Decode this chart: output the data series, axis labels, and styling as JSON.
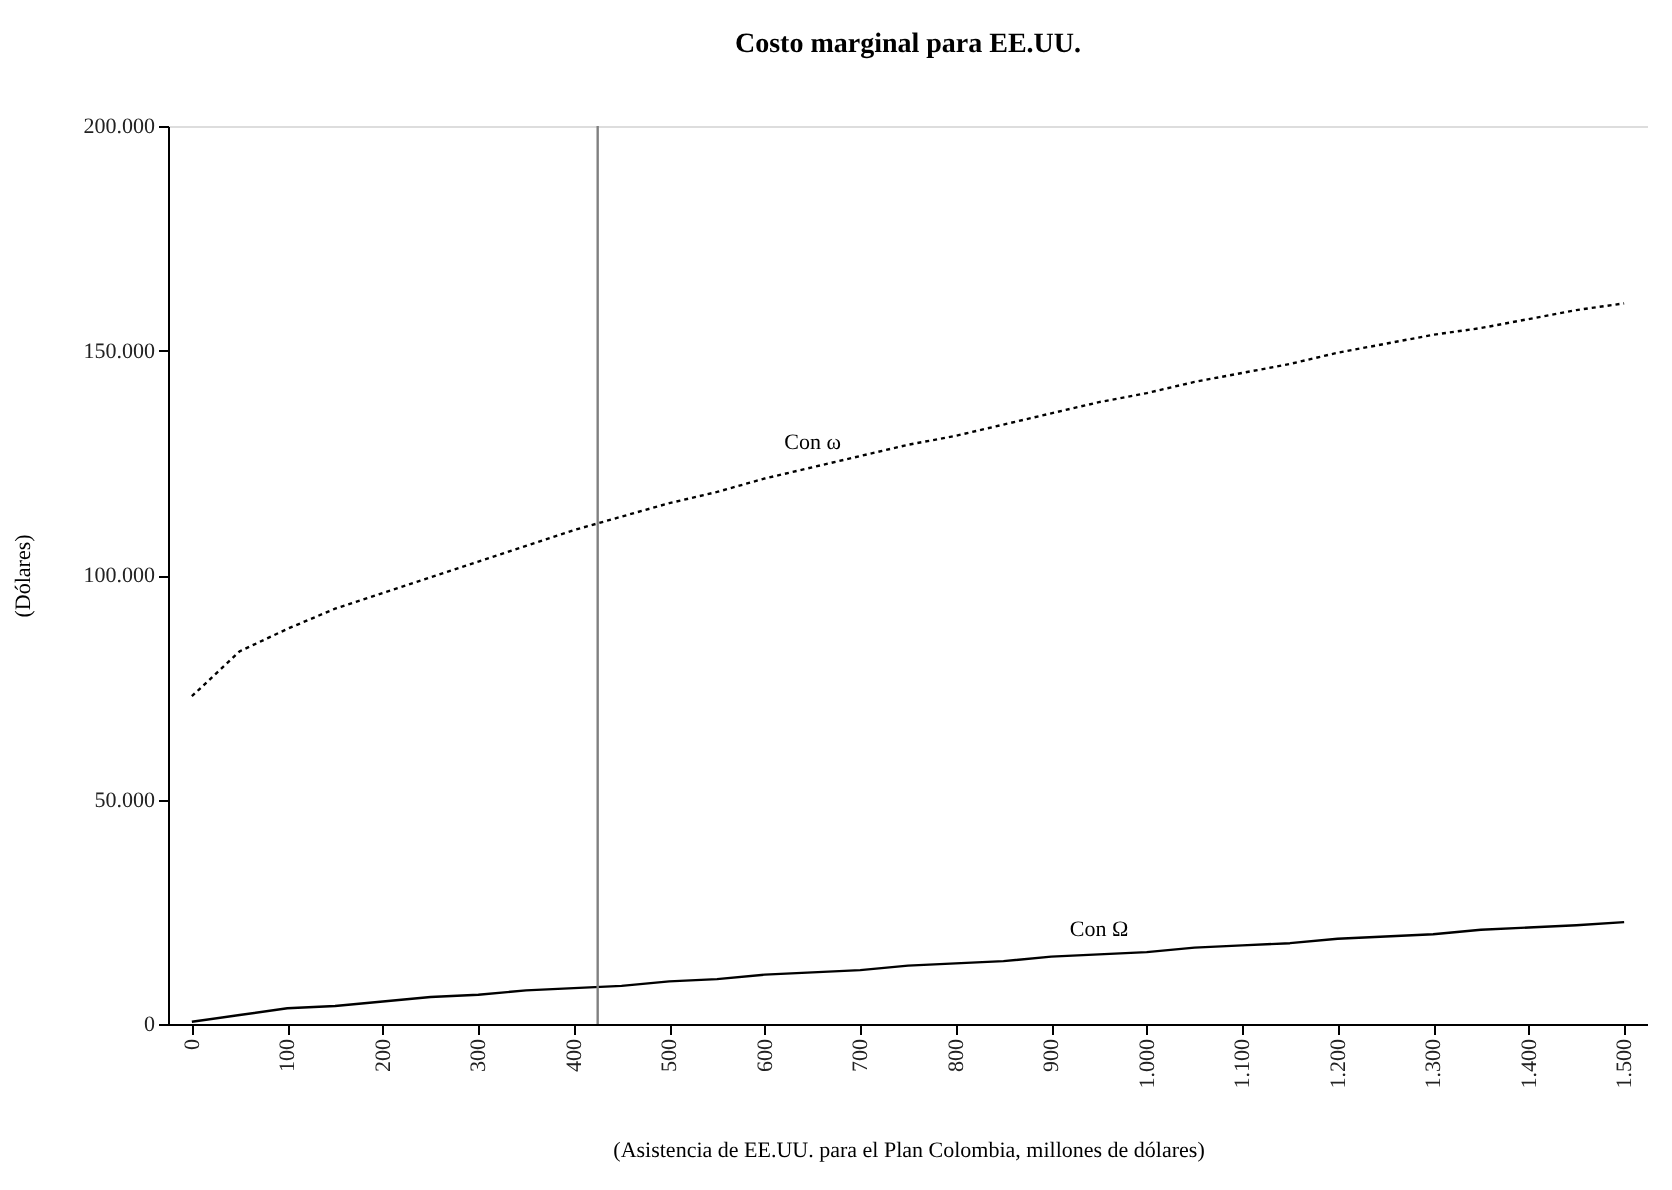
{
  "chart_data": {
    "type": "line",
    "title": "Costo marginal para EE.UU.",
    "xlabel": "(Asistencia de EE.UU. para el Plan Colombia, millones de dólares)",
    "ylabel": "(Dólares)",
    "x": [
      0,
      50,
      100,
      150,
      200,
      250,
      300,
      350,
      400,
      450,
      500,
      550,
      600,
      650,
      700,
      750,
      800,
      850,
      900,
      950,
      1000,
      1050,
      1100,
      1150,
      1200,
      1250,
      1300,
      1350,
      1400,
      1450,
      1500
    ],
    "series": [
      {
        "name": "Con ω",
        "color": "#000000",
        "line_style": "dotted",
        "values": [
          73000,
          83000,
          88000,
          92500,
          96000,
          99500,
          103000,
          106500,
          110000,
          113000,
          116000,
          118500,
          121500,
          124000,
          126500,
          129000,
          131000,
          133500,
          136000,
          138500,
          140500,
          143000,
          145000,
          147000,
          149500,
          151500,
          153500,
          155000,
          157000,
          159000,
          160500
        ]
      },
      {
        "name": "Con Ω",
        "color": "#000000",
        "line_style": "solid",
        "values": [
          500,
          2000,
          3500,
          4000,
          5000,
          6000,
          6500,
          7500,
          8000,
          8500,
          9500,
          10000,
          11000,
          11500,
          12000,
          13000,
          13500,
          14000,
          15000,
          15500,
          16000,
          17000,
          17500,
          18000,
          19000,
          19500,
          20000,
          21000,
          21500,
          22000,
          22700
        ]
      }
    ],
    "xlim": [
      -25,
      1525
    ],
    "xticks": [
      0,
      100,
      200,
      300,
      400,
      500,
      600,
      700,
      800,
      900,
      {
        "value": 1000,
        "label": "1.000"
      },
      {
        "value": 1100,
        "label": "1.100"
      },
      {
        "value": 1200,
        "label": "1.200"
      },
      {
        "value": 1300,
        "label": "1.300"
      },
      {
        "value": 1400,
        "label": "1.400"
      },
      {
        "value": 1500,
        "label": "1.500"
      }
    ],
    "ylim": [
      0,
      200000
    ],
    "yticks": [
      0,
      {
        "value": 50000,
        "label": "50.000"
      },
      {
        "value": 100000,
        "label": "100.000"
      },
      {
        "value": 150000,
        "label": "150.000"
      },
      {
        "value": 200000,
        "label": "200.000"
      }
    ],
    "ref_lines": [
      {
        "axis": "x",
        "value": 425,
        "label": null,
        "color": "#808080"
      }
    ],
    "grid": false,
    "legend": false
  }
}
